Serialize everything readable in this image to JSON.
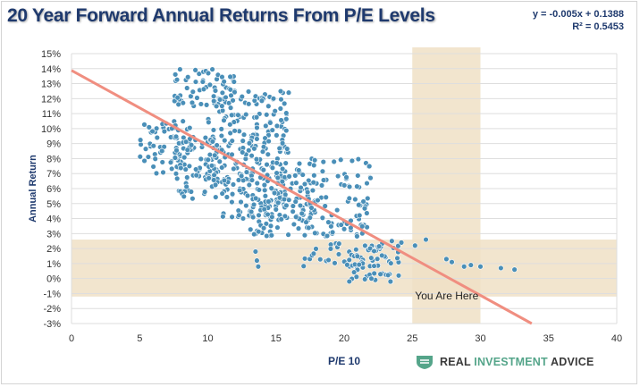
{
  "title": "20 Year Forward Annual Returns From P/E Levels",
  "equation": {
    "line1": "y = -0.005x + 0.1388",
    "line2": "R² = 0.5453"
  },
  "brand": {
    "part1": "REAL ",
    "part2": "INVESTMENT",
    "part3": " ADVICE",
    "accent_color": "#55a58a"
  },
  "colors": {
    "points": "#4a8fb8",
    "trend": "#f08e80",
    "band": "#f0e1c6"
  },
  "chart_data": {
    "type": "scatter",
    "xlabel": "P/E 10",
    "ylabel": "Annual Return",
    "xlim": [
      0,
      40
    ],
    "ylim": [
      -3,
      15
    ],
    "xticks": [
      "0",
      "5",
      "10",
      "15",
      "20",
      "25",
      "30",
      "35",
      "40"
    ],
    "yticks": [
      "-3%",
      "-2%",
      "-1%",
      "0%",
      "1%",
      "2%",
      "3%",
      "4%",
      "5%",
      "6%",
      "7%",
      "8%",
      "9%",
      "10%",
      "11%",
      "12%",
      "13%",
      "14%",
      "15%"
    ],
    "grid": "horizontal",
    "trendline": {
      "slope": -0.5,
      "intercept": 13.88
    },
    "annotation": "You Are Here",
    "highlight_x_range": [
      25,
      30
    ],
    "highlight_y_range": [
      -1.2,
      2.6
    ],
    "clusters": [
      {
        "x": [
          5,
          9
        ],
        "y": [
          7,
          10.5
        ],
        "n": 70
      },
      {
        "x": [
          7.5,
          11.5
        ],
        "y": [
          5.3,
          9.5
        ],
        "n": 80
      },
      {
        "x": [
          7.5,
          12
        ],
        "y": [
          11.5,
          14
        ],
        "n": 60
      },
      {
        "x": [
          10,
          16
        ],
        "y": [
          9.5,
          12.5
        ],
        "n": 90
      },
      {
        "x": [
          10,
          16
        ],
        "y": [
          6.5,
          9.5
        ],
        "n": 110
      },
      {
        "x": [
          11,
          18
        ],
        "y": [
          4,
          7
        ],
        "n": 110
      },
      {
        "x": [
          13,
          22
        ],
        "y": [
          2.8,
          5.5
        ],
        "n": 120
      },
      {
        "x": [
          16,
          22
        ],
        "y": [
          6,
          8
        ],
        "n": 40
      },
      {
        "x": [
          17,
          24
        ],
        "y": [
          0.8,
          2.5
        ],
        "n": 60
      },
      {
        "x": [
          20,
          23.5
        ],
        "y": [
          -0.2,
          1.2
        ],
        "n": 25
      }
    ],
    "scattered_points": [
      {
        "x": 13.5,
        "y": 1.8
      },
      {
        "x": 13.6,
        "y": 1.2
      },
      {
        "x": 13.7,
        "y": 0.8
      },
      {
        "x": 23.5,
        "y": 2.5
      },
      {
        "x": 24.2,
        "y": 2.4
      },
      {
        "x": 25.2,
        "y": 2.2
      },
      {
        "x": 26.0,
        "y": 2.6
      },
      {
        "x": 27.5,
        "y": 1.3
      },
      {
        "x": 27.9,
        "y": 1.1
      },
      {
        "x": 28.8,
        "y": 0.8
      },
      {
        "x": 29.3,
        "y": 0.9
      },
      {
        "x": 30.0,
        "y": 0.8
      },
      {
        "x": 31.5,
        "y": 0.7
      },
      {
        "x": 32.5,
        "y": 0.6
      },
      {
        "x": 24.0,
        "y": 0.2
      },
      {
        "x": 23.4,
        "y": -0.2
      },
      {
        "x": 22.0,
        "y": 0.0
      }
    ]
  }
}
